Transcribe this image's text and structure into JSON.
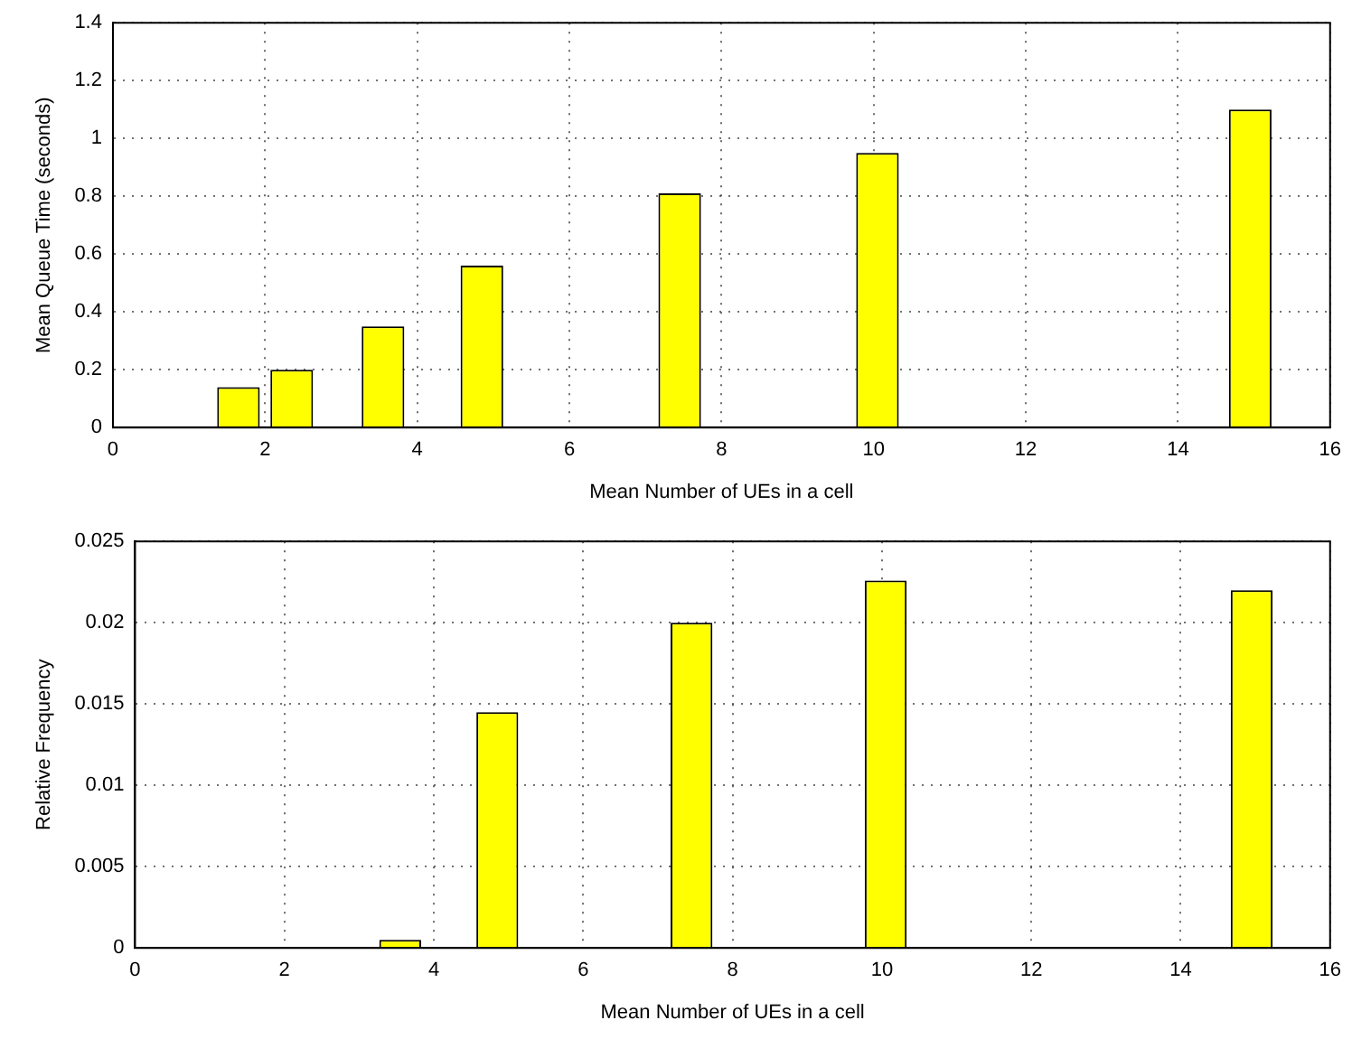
{
  "chart_data": [
    {
      "type": "bar",
      "xlabel": "Mean Number of UEs in a cell",
      "ylabel": "Mean Queue Time (seconds)",
      "x": [
        1.65,
        2.35,
        3.55,
        4.85,
        7.45,
        10.05,
        14.95
      ],
      "values": [
        0.14,
        0.2,
        0.35,
        0.56,
        0.81,
        0.95,
        1.1
      ],
      "color": "#ffff00",
      "xlim": [
        0,
        16
      ],
      "xticks": [
        0,
        2,
        4,
        6,
        8,
        10,
        12,
        14,
        16
      ],
      "ylim": [
        0,
        1.4
      ],
      "yticks": [
        0,
        0.2,
        0.4,
        0.6,
        0.8,
        1,
        1.2,
        1.4
      ],
      "grid": true,
      "legend": false
    },
    {
      "type": "bar",
      "xlabel": "Mean Number of UEs in a cell",
      "ylabel": "Relative Frequency",
      "x": [
        1.65,
        2.35,
        3.55,
        4.85,
        7.45,
        10.05,
        14.95
      ],
      "values": [
        0,
        0,
        0.0005,
        0.0145,
        0.02,
        0.0226,
        0.022
      ],
      "color": "#ffff00",
      "xlim": [
        0,
        16
      ],
      "xticks": [
        0,
        2,
        4,
        6,
        8,
        10,
        12,
        14,
        16
      ],
      "ylim": [
        0,
        0.025
      ],
      "yticks": [
        0,
        0.005,
        0.01,
        0.015,
        0.02,
        0.025
      ],
      "grid": true,
      "legend": false
    }
  ]
}
